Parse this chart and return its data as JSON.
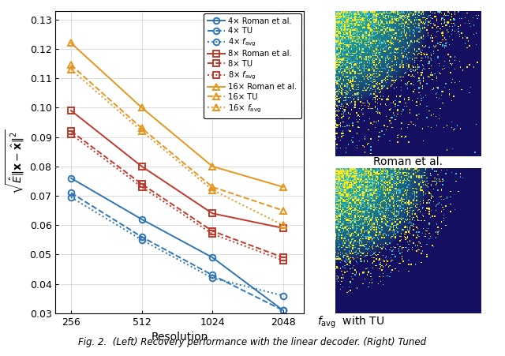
{
  "x": [
    256,
    512,
    1024,
    2048
  ],
  "series": {
    "4x_roman": {
      "y": [
        0.076,
        0.062,
        0.049,
        0.031
      ],
      "color": "#2E75B6",
      "linestyle": "solid",
      "marker": "o",
      "label": "4× Roman et al."
    },
    "4x_TU": {
      "y": [
        0.071,
        0.056,
        0.043,
        0.031
      ],
      "color": "#2E75B6",
      "linestyle": "dashed",
      "marker": "o",
      "label": "4× TU"
    },
    "4x_favg": {
      "y": [
        0.0695,
        0.055,
        0.042,
        0.036
      ],
      "color": "#2E75B6",
      "linestyle": "dotted",
      "marker": "o",
      "label": "4× $f_{\\mathrm{avg}}$"
    },
    "8x_roman": {
      "y": [
        0.099,
        0.08,
        0.064,
        0.059
      ],
      "color": "#C0392B",
      "linestyle": "solid",
      "marker": "s",
      "label": "8× Roman et al."
    },
    "8x_TU": {
      "y": [
        0.092,
        0.074,
        0.058,
        0.049
      ],
      "color": "#C0392B",
      "linestyle": "dashed",
      "marker": "s",
      "label": "8× TU"
    },
    "8x_favg": {
      "y": [
        0.091,
        0.073,
        0.057,
        0.048
      ],
      "color": "#C0392B",
      "linestyle": "dotted",
      "marker": "s",
      "label": "8× $f_{\\mathrm{avg}}$"
    },
    "16x_roman": {
      "y": [
        0.122,
        0.1,
        0.08,
        0.073
      ],
      "color": "#E6961E",
      "linestyle": "solid",
      "marker": "^",
      "label": "16× Roman et al."
    },
    "16x_TU": {
      "y": [
        0.1145,
        0.093,
        0.073,
        0.065
      ],
      "color": "#E6961E",
      "linestyle": "dashed",
      "marker": "^",
      "label": "16× TU"
    },
    "16x_favg": {
      "y": [
        0.113,
        0.092,
        0.072,
        0.06
      ],
      "color": "#E6961E",
      "linestyle": "dotted",
      "marker": "^",
      "label": "16× $f_{\\mathrm{avg}}$"
    }
  },
  "ylabel": "$\\sqrt{\\hat{E}\\|\\mathbf{x} - \\hat{\\mathbf{x}}\\|^2}$",
  "xlabel": "Resolution",
  "ylim": [
    0.03,
    0.133
  ],
  "yticks": [
    0.03,
    0.04,
    0.05,
    0.06,
    0.07,
    0.08,
    0.09,
    0.1,
    0.11,
    0.12,
    0.13
  ],
  "fig_width": 6.4,
  "fig_height": 4.51,
  "caption": "Fig. 2.  (Left) Recovery performance with the linear decoder. (Right) Tuned",
  "right_label_top": "Roman et al.",
  "right_label_bot": "$f_{\\mathrm{avg}}$ with TU"
}
